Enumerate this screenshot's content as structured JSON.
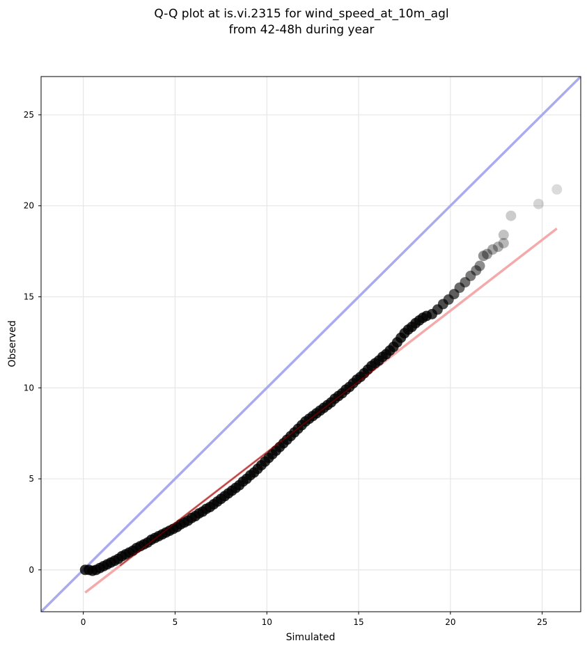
{
  "chart_data": {
    "type": "scatter",
    "title": "Q-Q plot at is.vi.2315 for wind_speed_at_10m_agl",
    "subtitle": "from 42-48h during year",
    "xlabel": "Simulated",
    "ylabel": "Observed",
    "xlim": [
      -2.3,
      27.1
    ],
    "ylim": [
      -2.3,
      27.1
    ],
    "xticks": [
      0,
      5,
      10,
      15,
      20,
      25
    ],
    "yticks": [
      0,
      5,
      10,
      15,
      20,
      25
    ],
    "grid": true,
    "colors": {
      "points": "#000000",
      "identity_line": "#aaaaf0",
      "fit_line": "#f4aaaa",
      "fit_line_dark": "#8b0000"
    },
    "series": [
      {
        "type": "scatter",
        "points": [
          [
            0.1,
            0.0
          ],
          [
            0.3,
            0.0
          ],
          [
            0.5,
            -0.05
          ],
          [
            0.7,
            0.0
          ],
          [
            0.9,
            0.1
          ],
          [
            1.1,
            0.2
          ],
          [
            1.3,
            0.3
          ],
          [
            1.5,
            0.4
          ],
          [
            1.7,
            0.5
          ],
          [
            1.9,
            0.6
          ],
          [
            2.1,
            0.75
          ],
          [
            2.3,
            0.85
          ],
          [
            2.5,
            0.95
          ],
          [
            2.7,
            1.05
          ],
          [
            2.9,
            1.2
          ],
          [
            3.1,
            1.3
          ],
          [
            3.3,
            1.4
          ],
          [
            3.5,
            1.5
          ],
          [
            3.7,
            1.65
          ],
          [
            3.9,
            1.75
          ],
          [
            4.1,
            1.85
          ],
          [
            4.3,
            1.95
          ],
          [
            4.5,
            2.05
          ],
          [
            4.7,
            2.15
          ],
          [
            4.9,
            2.25
          ],
          [
            5.1,
            2.35
          ],
          [
            5.3,
            2.5
          ],
          [
            5.5,
            2.6
          ],
          [
            5.7,
            2.7
          ],
          [
            5.9,
            2.85
          ],
          [
            6.1,
            2.95
          ],
          [
            6.3,
            3.1
          ],
          [
            6.5,
            3.2
          ],
          [
            6.7,
            3.35
          ],
          [
            6.9,
            3.45
          ],
          [
            7.1,
            3.6
          ],
          [
            7.3,
            3.75
          ],
          [
            7.5,
            3.9
          ],
          [
            7.7,
            4.05
          ],
          [
            7.9,
            4.2
          ],
          [
            8.1,
            4.35
          ],
          [
            8.3,
            4.5
          ],
          [
            8.5,
            4.65
          ],
          [
            8.7,
            4.85
          ],
          [
            8.9,
            5.0
          ],
          [
            9.1,
            5.2
          ],
          [
            9.3,
            5.35
          ],
          [
            9.5,
            5.55
          ],
          [
            9.7,
            5.75
          ],
          [
            9.9,
            5.95
          ],
          [
            10.1,
            6.15
          ],
          [
            10.3,
            6.35
          ],
          [
            10.5,
            6.55
          ],
          [
            10.7,
            6.75
          ],
          [
            10.9,
            6.95
          ],
          [
            11.1,
            7.15
          ],
          [
            11.3,
            7.35
          ],
          [
            11.5,
            7.55
          ],
          [
            11.7,
            7.75
          ],
          [
            11.9,
            7.95
          ],
          [
            12.1,
            8.15
          ],
          [
            12.3,
            8.3
          ],
          [
            12.5,
            8.45
          ],
          [
            12.7,
            8.6
          ],
          [
            12.9,
            8.75
          ],
          [
            13.1,
            8.9
          ],
          [
            13.3,
            9.05
          ],
          [
            13.5,
            9.2
          ],
          [
            13.7,
            9.4
          ],
          [
            13.9,
            9.55
          ],
          [
            14.1,
            9.7
          ],
          [
            14.3,
            9.9
          ],
          [
            14.5,
            10.05
          ],
          [
            14.7,
            10.25
          ],
          [
            14.9,
            10.45
          ],
          [
            15.1,
            10.6
          ],
          [
            15.3,
            10.8
          ],
          [
            15.5,
            11.0
          ],
          [
            15.7,
            11.2
          ],
          [
            15.9,
            11.35
          ],
          [
            16.1,
            11.5
          ],
          [
            16.3,
            11.7
          ],
          [
            16.5,
            11.85
          ],
          [
            16.7,
            12.05
          ],
          [
            16.9,
            12.25
          ],
          [
            17.1,
            12.5
          ],
          [
            17.3,
            12.75
          ],
          [
            17.5,
            13.0
          ],
          [
            17.7,
            13.2
          ],
          [
            17.9,
            13.35
          ],
          [
            18.1,
            13.55
          ],
          [
            18.3,
            13.7
          ],
          [
            18.5,
            13.85
          ],
          [
            18.7,
            13.95
          ],
          [
            19.0,
            14.05
          ],
          [
            19.3,
            14.3
          ],
          [
            19.6,
            14.6
          ],
          [
            19.9,
            14.85
          ],
          [
            20.2,
            15.15
          ],
          [
            20.5,
            15.5
          ],
          [
            20.8,
            15.8
          ],
          [
            21.1,
            16.15
          ],
          [
            21.4,
            16.45
          ],
          [
            21.6,
            16.7
          ],
          [
            21.8,
            17.25
          ],
          [
            22.0,
            17.35
          ],
          [
            22.3,
            17.6
          ],
          [
            22.6,
            17.75
          ],
          [
            22.9,
            17.95
          ],
          [
            22.9,
            18.4
          ],
          [
            23.3,
            19.45
          ],
          [
            24.8,
            20.1
          ],
          [
            25.8,
            20.9
          ]
        ]
      },
      {
        "type": "line",
        "points": [
          [
            -2.3,
            -2.3
          ],
          [
            27.1,
            27.1
          ]
        ]
      },
      {
        "type": "line",
        "points": [
          [
            0.1,
            -1.25
          ],
          [
            25.8,
            18.75
          ]
        ]
      }
    ]
  }
}
